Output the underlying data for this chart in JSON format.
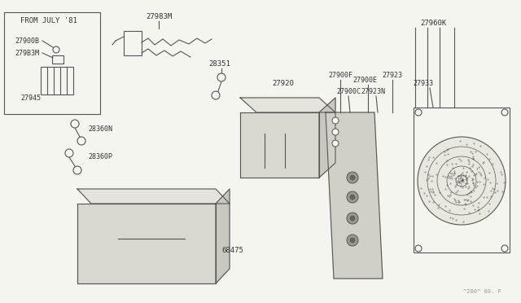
{
  "bg_color": "#f5f5f0",
  "line_color": "#555555",
  "text_color": "#333333",
  "watermark": "^280^ 00. P",
  "inset_label": "FROM JULY '81",
  "parts_inset": [
    "27900B",
    "279B3M",
    "27945"
  ],
  "parts_top": [
    "27983M",
    "28351",
    "27920"
  ],
  "parts_mid": [
    "28360N",
    "28360P"
  ],
  "parts_right": [
    "27960K",
    "27900F",
    "27900E",
    "27923",
    "27900C",
    "27923N",
    "27933"
  ],
  "part_bottom": "68475"
}
